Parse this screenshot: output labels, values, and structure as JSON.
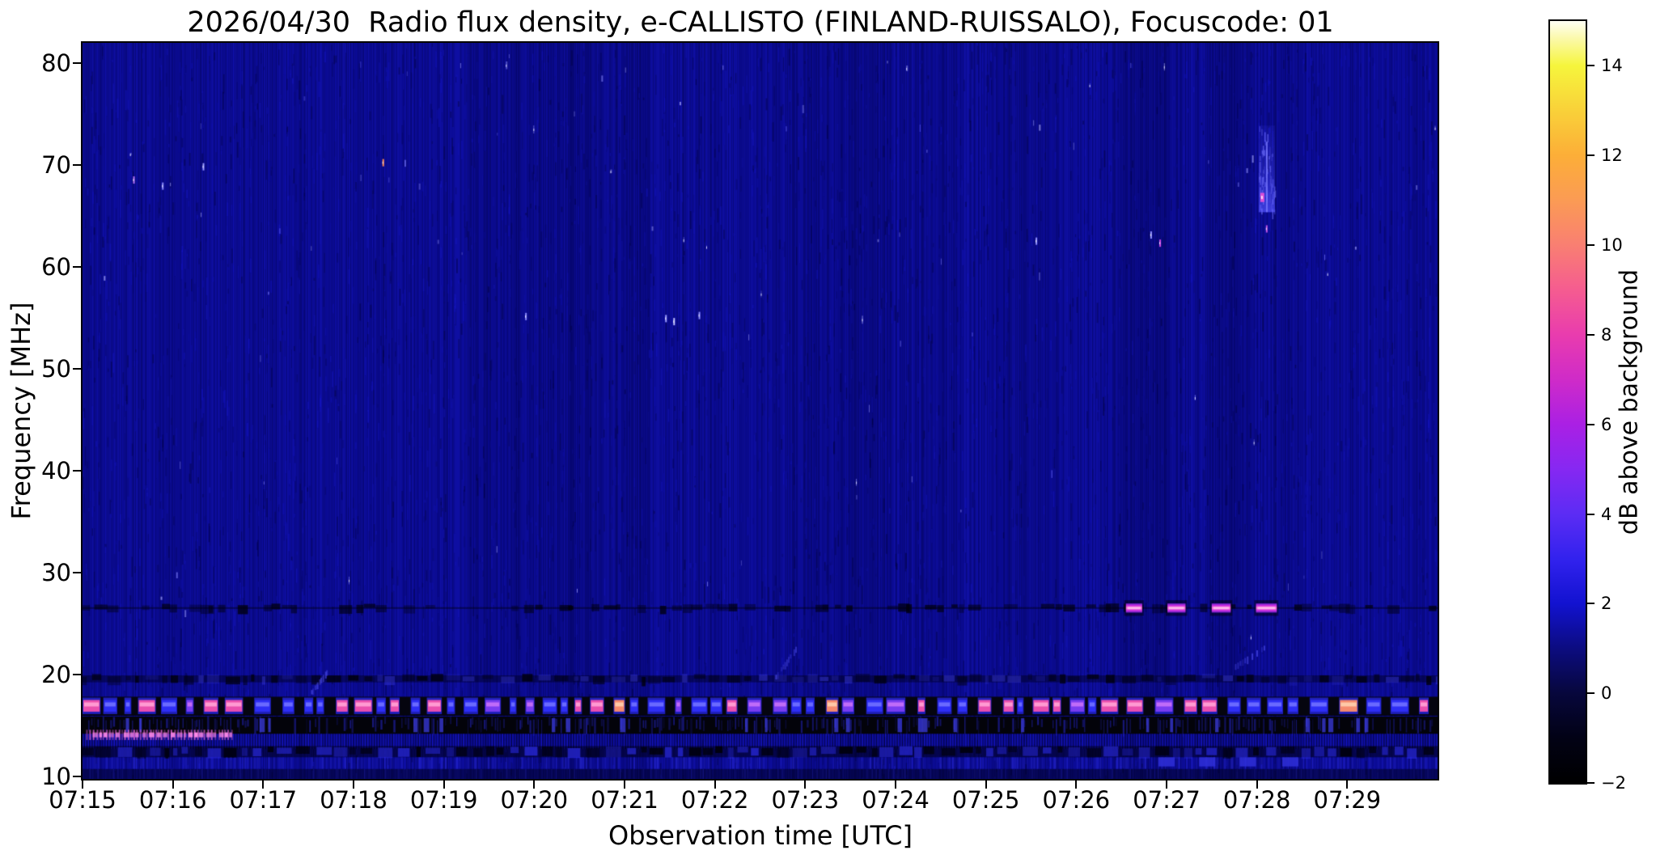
{
  "chart_data": {
    "type": "heatmap",
    "title": "2026/04/30  Radio flux density, e-CALLISTO (FINLAND-RUISSALO), Focuscode: 01",
    "xlabel": "Observation time [UTC]",
    "ylabel": "Frequency [MHz]",
    "x_tick_labels": [
      "07:15",
      "07:16",
      "07:17",
      "07:18",
      "07:19",
      "07:20",
      "07:21",
      "07:22",
      "07:23",
      "07:24",
      "07:25",
      "07:26",
      "07:27",
      "07:28",
      "07:29"
    ],
    "x_tick_minutes": [
      0,
      1,
      2,
      3,
      4,
      5,
      6,
      7,
      8,
      9,
      10,
      11,
      12,
      13,
      14
    ],
    "x_range_minutes": [
      0,
      15
    ],
    "start_time_utc": "07:15",
    "y_tick_labels": [
      "80",
      "70",
      "60",
      "50",
      "40",
      "30",
      "20",
      "10"
    ],
    "y_tick_values": [
      80,
      70,
      60,
      50,
      40,
      30,
      20,
      10
    ],
    "freq_range_mhz": [
      9.8,
      82.0
    ],
    "grid": false,
    "background_color_hex": "#0b0b92",
    "colorbar": {
      "label": "dB above background",
      "tick_labels": [
        "14",
        "12",
        "10",
        "8",
        "6",
        "4",
        "2",
        "0",
        "−2"
      ],
      "tick_values": [
        14,
        12,
        10,
        8,
        6,
        4,
        2,
        0,
        -2
      ],
      "value_range": [
        -2,
        15
      ],
      "gradient_stops": [
        {
          "v": -2,
          "c": "#000000"
        },
        {
          "v": -1,
          "c": "#020215"
        },
        {
          "v": 0,
          "c": "#07073c"
        },
        {
          "v": 1,
          "c": "#0c0c80"
        },
        {
          "v": 2,
          "c": "#1212d0"
        },
        {
          "v": 3,
          "c": "#3222ee"
        },
        {
          "v": 4,
          "c": "#5c2cf4"
        },
        {
          "v": 5,
          "c": "#8628f2"
        },
        {
          "v": 6,
          "c": "#aa20e4"
        },
        {
          "v": 7,
          "c": "#cf2bc8"
        },
        {
          "v": 8,
          "c": "#e93cae"
        },
        {
          "v": 9,
          "c": "#f55c90"
        },
        {
          "v": 10,
          "c": "#f97f72"
        },
        {
          "v": 11,
          "c": "#fb9b54"
        },
        {
          "v": 12,
          "c": "#fcae38"
        },
        {
          "v": 13,
          "c": "#f9d139"
        },
        {
          "v": 14,
          "c": "#f6f53c"
        },
        {
          "v": 14.6,
          "c": "#fbf9a8"
        },
        {
          "v": 15,
          "c": "#fffff4"
        }
      ]
    },
    "features": {
      "rfi_line_26mhz": {
        "freq_top": 27.0,
        "freq_bottom": 26.1,
        "style": "dark-dotted"
      },
      "burst_dashes_26mhz": {
        "freq_top": 27.0,
        "freq_bottom": 26.1,
        "time_ranges_min": [
          [
            11.55,
            11.73
          ],
          [
            12.01,
            12.21
          ],
          [
            12.5,
            12.71
          ],
          [
            12.99,
            13.22
          ]
        ],
        "core_color": "#ff84d8",
        "mid_color": "#d232e0",
        "edge_color": "#6a1ec8"
      },
      "echo_dashes_11mhz": {
        "freq_top": 11.9,
        "freq_bottom": 11.0,
        "time_ranges_min": [
          [
            11.91,
            12.09
          ],
          [
            12.36,
            12.54
          ],
          [
            12.81,
            12.99
          ],
          [
            13.28,
            13.46
          ]
        ],
        "color": "#2f2fd8"
      },
      "vertical_streak": {
        "time_range_min": [
          13.02,
          13.2
        ],
        "freq_range_mhz": [
          65.4,
          73.9
        ],
        "color": "#4646f2",
        "hotspot_freq_mhz": [
          66.4,
          67.3
        ],
        "hotspot_color": "#d84fd8"
      },
      "diagonal_streaks": [
        {
          "t0": 7.67,
          "f0": 20.0,
          "t1": 7.95,
          "f1": 23.5
        },
        {
          "t0": 12.73,
          "f0": 20.9,
          "t1": 13.1,
          "f1": 23.0
        },
        {
          "t0": 2.53,
          "f0": 18.5,
          "t1": 2.71,
          "f1": 20.6
        }
      ],
      "noise_bands": [
        {
          "name": "rfi-21mhz",
          "freq_range": [
            19.1,
            20.1
          ],
          "style": "mottled"
        },
        {
          "name": "blob-row-17mhz",
          "freq_range": [
            15.9,
            18.0
          ],
          "style": "blobs",
          "hot_time_ranges": [
            [
              4.4,
              9.4
            ],
            [
              12.9,
              15.0
            ]
          ]
        },
        {
          "name": "black-band-15mhz",
          "freq_range": [
            14.2,
            15.9
          ],
          "style": "black-comb"
        },
        {
          "name": "comb-14mhz",
          "freq_range": [
            12.7,
            14.2
          ],
          "style": "comb"
        },
        {
          "name": "dark-row-13mhz",
          "freq_range": [
            11.9,
            13.0
          ],
          "style": "mottled-strong"
        },
        {
          "name": "stripe-row-11mhz",
          "freq_range": [
            10.75,
            11.9
          ],
          "style": "stripes"
        },
        {
          "name": "bottom-dim",
          "freq_range": [
            9.8,
            10.75
          ],
          "style": "dim"
        }
      ],
      "magenta_line_14mhz": {
        "time_range_min": [
          0.04,
          1.68
        ],
        "freq_range": [
          13.6,
          14.6
        ],
        "color": "#e060d8",
        "core_color": "#ff8ae8"
      },
      "notable_speckles": [
        {
          "t": 3.32,
          "f": 70.3,
          "c": "#ff8a55"
        },
        {
          "t": 0.56,
          "f": 68.6,
          "c": "#b070f0"
        },
        {
          "t": 0.88,
          "f": 68.0,
          "c": "#8888ff"
        },
        {
          "t": 1.33,
          "f": 69.9,
          "c": "#9a9aff"
        },
        {
          "t": 6.45,
          "f": 55.0,
          "c": "#9a9aff"
        },
        {
          "t": 6.54,
          "f": 54.7,
          "c": "#c0c0ff"
        },
        {
          "t": 6.82,
          "f": 55.3,
          "c": "#8888ff"
        },
        {
          "t": 11.82,
          "f": 63.2,
          "c": "#9090ff"
        },
        {
          "t": 11.92,
          "f": 62.4,
          "c": "#cc44dd"
        },
        {
          "t": 13.1,
          "f": 63.8,
          "c": "#c050e0"
        },
        {
          "t": 10.55,
          "f": 62.6,
          "c": "#9090ff"
        },
        {
          "t": 4.9,
          "f": 55.2,
          "c": "#8888ff"
        }
      ]
    }
  }
}
